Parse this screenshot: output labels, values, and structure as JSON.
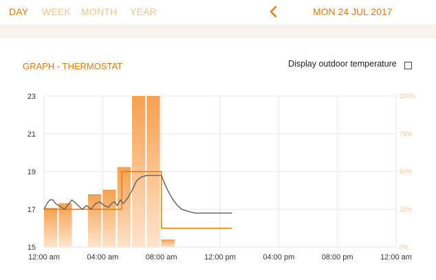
{
  "tabs": [
    {
      "label": "DAY",
      "active": true
    },
    {
      "label": "WEEK",
      "active": false
    },
    {
      "label": "MONTH",
      "active": false
    },
    {
      "label": "YEAR",
      "active": false
    }
  ],
  "date_label": "MON 24 JUL 2017",
  "graph_title": "GRAPH -   THERMOSTAT",
  "outdoor_toggle": {
    "label": "Display outdoor temperature",
    "checked": false
  },
  "icons": {
    "back": "chevron-left-icon"
  },
  "colors": {
    "accent": "#e07a10",
    "accent_light": "#f3c48f",
    "bar_top": "#f7a04e",
    "bar_bottom": "#fde4cc",
    "grid": "#e6e6e6",
    "temp_line": "#666666",
    "setpoint_line": "#e07a10"
  },
  "chart_data": {
    "type": "bar+line",
    "x_ticks": [
      "12:00 am",
      "04:00 am",
      "08:00 am",
      "12:00 pm",
      "04:00 pm",
      "08:00 pm",
      "12:00 am"
    ],
    "x_range_hours": [
      0,
      24
    ],
    "y_left": {
      "ticks": [
        "23",
        "21",
        "19",
        "17",
        "15"
      ],
      "range": [
        15,
        23
      ]
    },
    "y_right": {
      "ticks": [
        "100%",
        "75%",
        "50%",
        "25%",
        "0%"
      ],
      "range": [
        0,
        100
      ]
    },
    "bars": [
      {
        "start_hour": 0.0,
        "end_hour": 0.9,
        "percent": 26
      },
      {
        "start_hour": 1.0,
        "end_hour": 1.9,
        "percent": 29
      },
      {
        "start_hour": 3.0,
        "end_hour": 3.9,
        "percent": 35
      },
      {
        "start_hour": 4.0,
        "end_hour": 4.9,
        "percent": 38
      },
      {
        "start_hour": 5.0,
        "end_hour": 5.9,
        "percent": 53
      },
      {
        "start_hour": 6.0,
        "end_hour": 6.9,
        "percent": 100
      },
      {
        "start_hour": 7.0,
        "end_hour": 7.9,
        "percent": 100
      },
      {
        "start_hour": 8.0,
        "end_hour": 8.9,
        "percent": 5
      }
    ],
    "setpoint": [
      {
        "hour": 0.0,
        "temp": 17.0
      },
      {
        "hour": 5.3,
        "temp": 17.0
      },
      {
        "hour": 5.3,
        "temp": 19.0
      },
      {
        "hour": 8.0,
        "temp": 19.0
      },
      {
        "hour": 8.0,
        "temp": 16.0
      },
      {
        "hour": 12.8,
        "temp": 16.0
      }
    ],
    "temperature": [
      {
        "hour": 0.0,
        "temp": 17.0
      },
      {
        "hour": 0.2,
        "temp": 17.3
      },
      {
        "hour": 0.4,
        "temp": 17.5
      },
      {
        "hour": 0.6,
        "temp": 17.5
      },
      {
        "hour": 0.8,
        "temp": 17.3
      },
      {
        "hour": 1.0,
        "temp": 17.2
      },
      {
        "hour": 1.2,
        "temp": 17.1
      },
      {
        "hour": 1.4,
        "temp": 17.0
      },
      {
        "hour": 1.6,
        "temp": 17.2
      },
      {
        "hour": 1.9,
        "temp": 17.5
      },
      {
        "hour": 2.2,
        "temp": 17.3
      },
      {
        "hour": 2.6,
        "temp": 17.0
      },
      {
        "hour": 2.9,
        "temp": 17.2
      },
      {
        "hour": 3.2,
        "temp": 17.0
      },
      {
        "hour": 3.5,
        "temp": 17.3
      },
      {
        "hour": 3.8,
        "temp": 17.4
      },
      {
        "hour": 4.1,
        "temp": 17.2
      },
      {
        "hour": 4.4,
        "temp": 17.1
      },
      {
        "hour": 4.6,
        "temp": 17.3
      },
      {
        "hour": 4.8,
        "temp": 17.4
      },
      {
        "hour": 5.0,
        "temp": 17.2
      },
      {
        "hour": 5.2,
        "temp": 17.5
      },
      {
        "hour": 5.4,
        "temp": 17.3
      },
      {
        "hour": 5.7,
        "temp": 17.6
      },
      {
        "hour": 6.0,
        "temp": 18.0
      },
      {
        "hour": 6.3,
        "temp": 18.5
      },
      {
        "hour": 6.6,
        "temp": 18.7
      },
      {
        "hour": 7.0,
        "temp": 18.8
      },
      {
        "hour": 7.5,
        "temp": 18.8
      },
      {
        "hour": 8.0,
        "temp": 18.8
      },
      {
        "hour": 8.2,
        "temp": 18.4
      },
      {
        "hour": 8.5,
        "temp": 17.9
      },
      {
        "hour": 8.8,
        "temp": 17.5
      },
      {
        "hour": 9.1,
        "temp": 17.2
      },
      {
        "hour": 9.4,
        "temp": 17.0
      },
      {
        "hour": 9.8,
        "temp": 16.9
      },
      {
        "hour": 10.3,
        "temp": 16.8
      },
      {
        "hour": 11.0,
        "temp": 16.8
      },
      {
        "hour": 12.0,
        "temp": 16.8
      },
      {
        "hour": 12.8,
        "temp": 16.8
      }
    ]
  }
}
